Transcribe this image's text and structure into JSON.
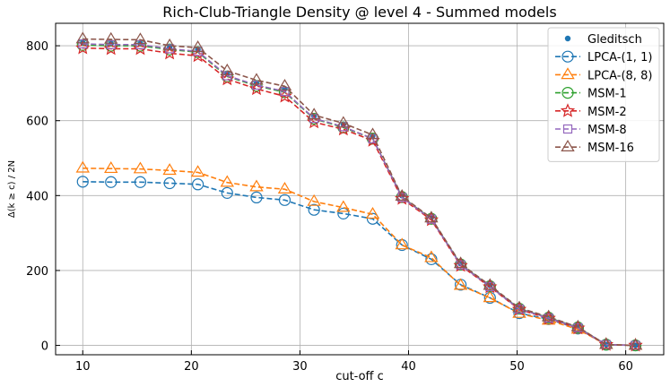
{
  "chart_data": {
    "type": "line",
    "title": "Rich-Club-Triangle Density @ level 4 - Summed models",
    "xlabel": "cut-off c",
    "ylabel": "Δ(k ≥ c) / 2N",
    "xlim": [
      7.5,
      63.5
    ],
    "ylim": [
      -25,
      860
    ],
    "xticks": [
      10,
      20,
      30,
      40,
      50,
      60
    ],
    "yticks": [
      0,
      200,
      400,
      600,
      800
    ],
    "grid": true,
    "legend_position": "top-right",
    "x": [
      10,
      12.6,
      15.3,
      18,
      20.6,
      23.3,
      26,
      28.6,
      31.3,
      34,
      36.7,
      39.4,
      42.1,
      44.8,
      47.5,
      50.2,
      52.9,
      55.6,
      58.2,
      60.9
    ],
    "series": [
      {
        "name": "Gleditsch",
        "style": "scatter",
        "color": "#1f77b4",
        "values": [
          808,
          806,
          806,
          795,
          790,
          725,
          700,
          685,
          612,
          590,
          560,
          400,
          342,
          218,
          160,
          100,
          76,
          50,
          2,
          0
        ]
      },
      {
        "name": "LPCA-(1, 1)",
        "style": "line",
        "marker": "circle",
        "color": "#1f77b4",
        "values": [
          437,
          436,
          436,
          433,
          430,
          407,
          395,
          388,
          362,
          352,
          338,
          268,
          230,
          162,
          127,
          86,
          70,
          45,
          2,
          0
        ]
      },
      {
        "name": "LPCA-(8, 8)",
        "style": "line",
        "marker": "triangle",
        "color": "#ff7f0e",
        "values": [
          473,
          472,
          471,
          467,
          462,
          435,
          423,
          417,
          384,
          368,
          350,
          268,
          234,
          160,
          127,
          85,
          67,
          43,
          2,
          0
        ]
      },
      {
        "name": "MSM-1",
        "style": "line",
        "marker": "circle",
        "color": "#2ca02c",
        "values": [
          802,
          800,
          800,
          790,
          783,
          718,
          693,
          676,
          605,
          582,
          552,
          396,
          338,
          216,
          158,
          98,
          74,
          48,
          2,
          0
        ]
      },
      {
        "name": "MSM-2",
        "style": "line",
        "marker": "star",
        "color": "#d62728",
        "values": [
          794,
          792,
          792,
          780,
          773,
          711,
          685,
          665,
          596,
          577,
          547,
          392,
          335,
          213,
          156,
          96,
          72,
          46,
          2,
          0
        ]
      },
      {
        "name": "MSM-8",
        "style": "line",
        "marker": "square",
        "color": "#9467bd",
        "values": [
          805,
          803,
          803,
          792,
          785,
          720,
          695,
          678,
          606,
          584,
          552,
          395,
          337,
          215,
          157,
          97,
          73,
          47,
          2,
          0
        ]
      },
      {
        "name": "MSM-16",
        "style": "line",
        "marker": "triangle",
        "color": "#8c564b",
        "values": [
          818,
          817,
          816,
          800,
          795,
          733,
          708,
          692,
          615,
          593,
          562,
          398,
          340,
          218,
          160,
          100,
          76,
          49,
          2,
          0
        ]
      }
    ]
  }
}
